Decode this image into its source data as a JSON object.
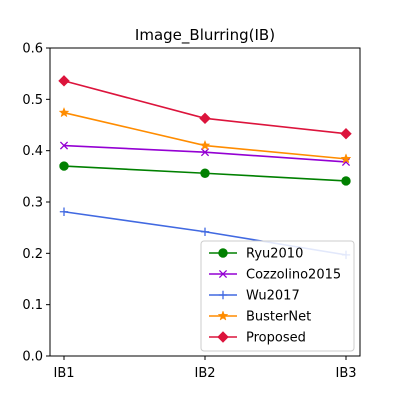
{
  "chart_data": {
    "type": "line",
    "title": "Image_Blurring(IB)",
    "xlabel": "",
    "ylabel": "",
    "categories": [
      "IB1",
      "IB2",
      "IB3"
    ],
    "ylim": [
      0,
      0.6
    ],
    "yticks": [
      "0.0",
      "0.1",
      "0.2",
      "0.3",
      "0.4",
      "0.5",
      "0.6"
    ],
    "ytick_values": [
      0,
      0.1,
      0.2,
      0.3,
      0.4,
      0.5,
      0.6
    ],
    "grid": false,
    "legend_position": "bottom-right",
    "series": [
      {
        "name": "Ryu2010",
        "values": [
          0.37,
          0.356,
          0.341
        ],
        "color": "#008000",
        "marker": "circle"
      },
      {
        "name": "Cozzolino2015",
        "values": [
          0.41,
          0.397,
          0.378
        ],
        "color": "#9400D3",
        "marker": "x"
      },
      {
        "name": "Wu2017",
        "values": [
          0.281,
          0.242,
          0.197
        ],
        "color": "#4169E1",
        "marker": "plus"
      },
      {
        "name": "BusterNet",
        "values": [
          0.474,
          0.41,
          0.384
        ],
        "color": "#FF8C00",
        "marker": "star"
      },
      {
        "name": "Proposed",
        "values": [
          0.536,
          0.463,
          0.433
        ],
        "color": "#DC143C",
        "marker": "diamond"
      }
    ]
  }
}
